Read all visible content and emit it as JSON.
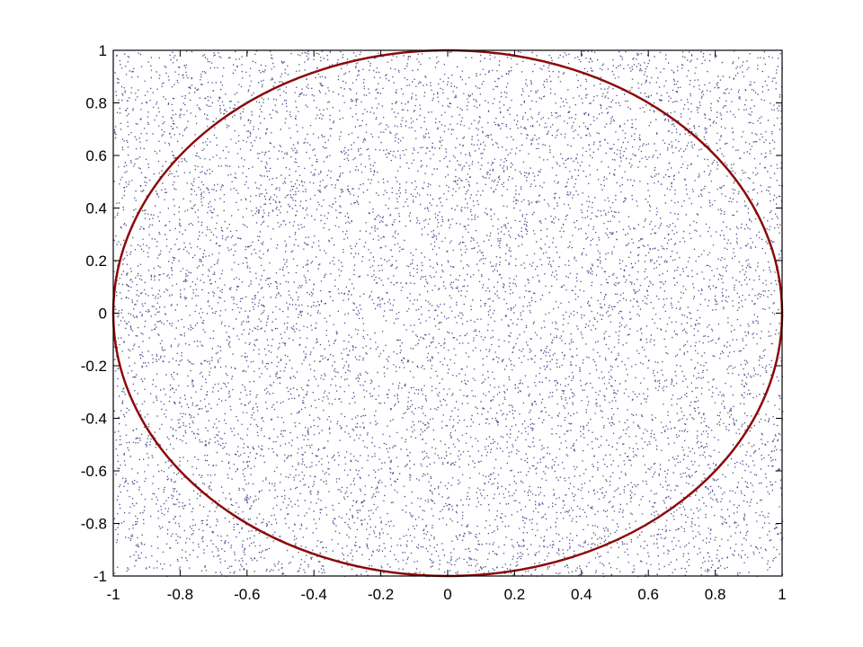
{
  "chart_data": {
    "type": "scatter",
    "title": "",
    "xlabel": "",
    "ylabel": "",
    "xlim": [
      -1,
      1
    ],
    "ylim": [
      -1,
      1
    ],
    "grid": false,
    "xticks": [
      "-1",
      "-0.8",
      "-0.6",
      "-0.4",
      "-0.2",
      "0",
      "0.2",
      "0.4",
      "0.6",
      "0.8",
      "1"
    ],
    "yticks": [
      "-1",
      "-0.8",
      "-0.6",
      "-0.4",
      "-0.2",
      "0",
      "0.2",
      "0.4",
      "0.6",
      "0.8",
      "1"
    ],
    "xtick_values": [
      -1,
      -0.8,
      -0.6,
      -0.4,
      -0.2,
      0,
      0.2,
      0.4,
      0.6,
      0.8,
      1
    ],
    "ytick_values": [
      -1,
      -0.8,
      -0.6,
      -0.4,
      -0.2,
      0,
      0.2,
      0.4,
      0.6,
      0.8,
      1
    ],
    "scatter": {
      "distribution": "uniform",
      "x_range": [
        -1,
        1
      ],
      "y_range": [
        -1,
        1
      ],
      "count": 10000,
      "color": "#1c1c70"
    },
    "curve": {
      "type": "circle",
      "center": [
        0,
        0
      ],
      "radius": 1,
      "color": "#8b0a0a"
    }
  }
}
